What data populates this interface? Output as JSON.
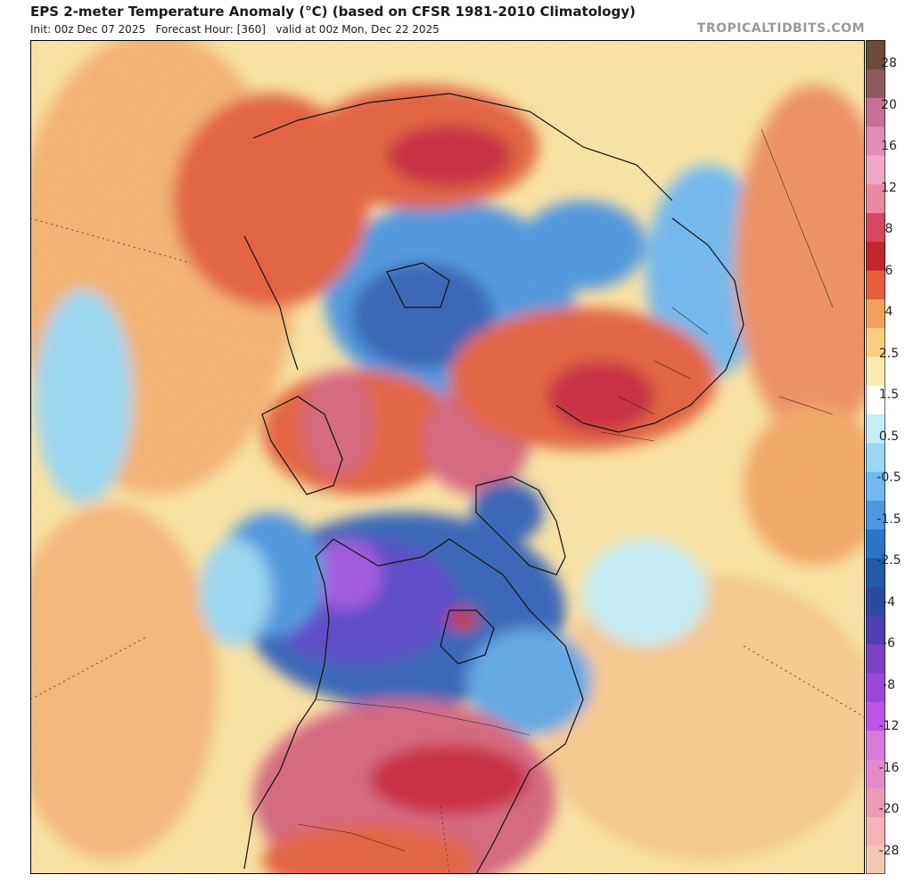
{
  "header": {
    "title": "EPS 2-meter Temperature Anomaly (°C) (based on CFSR 1981-2010 Climatology)",
    "subtitle": "Init: 00z Dec 07 2025   Forecast Hour: [360]   valid at 00z Mon, Dec 22 2025",
    "brand": "TROPICALTIDBITS.COM"
  },
  "colorbar": {
    "labels": [
      "28",
      "20",
      "16",
      "12",
      "8",
      "6",
      "4",
      "2.5",
      "1.5",
      "0.5",
      "-0.5",
      "-1.5",
      "-2.5",
      "-4",
      "-6",
      "-8",
      "-12",
      "-16",
      "-20",
      "-28"
    ],
    "colors": [
      "#f2c9b3",
      "#f4b4b6",
      "#e99bb4",
      "#e28bc6",
      "#d77bd9",
      "#bc55e6",
      "#9a49d6",
      "#7a43c4",
      "#4f3fb3",
      "#2c4aa3",
      "#245ba8",
      "#2b74c7",
      "#4d97e0",
      "#71b9ee",
      "#9ad7f2",
      "#c4eef5",
      "#ffffff",
      "#fbeab0",
      "#f8cf82",
      "#f3a15c",
      "#e4603c",
      "#c4242b",
      "#d64761",
      "#e88aa0",
      "#f3a7c7",
      "#e08cb7",
      "#c57197",
      "#8f5a5e",
      "#6b4a3a"
    ]
  },
  "colors": {
    "warm_light": "#fbe3a2",
    "warm_med": "#f5a865",
    "warm_strong": "#e4603c",
    "hot": "#c92a3c",
    "hot_pink": "#d6667e",
    "cool_light": "#a9e3f3",
    "cool_med": "#5fa8e6",
    "cold": "#3463b8",
    "very_cold": "#5a46c8",
    "extreme_cold": "#a156de",
    "coast": "#111111"
  }
}
